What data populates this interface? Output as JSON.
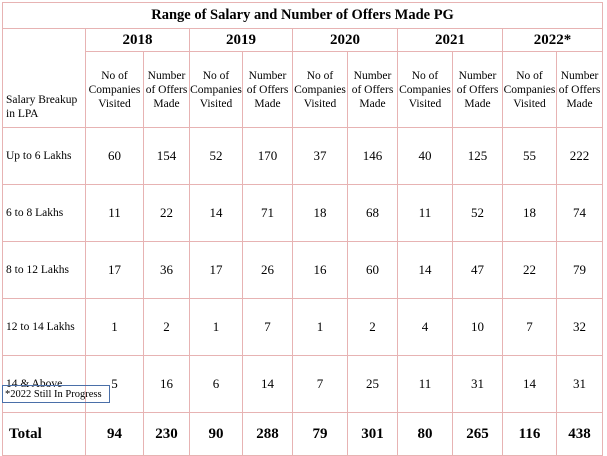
{
  "title": "Range of Salary and  Number of Offers Made PG",
  "row_header": "Salary Breakup in LPA",
  "col_companies": "No of Companies Visited",
  "col_offers": "Number of Offers Made",
  "years": [
    "2018",
    "2019",
    "2020",
    "2021",
    "2022*"
  ],
  "rows": [
    {
      "label": "Up to 6 Lakhs",
      "values": [
        "60",
        "154",
        "52",
        "170",
        "37",
        "146",
        "40",
        "125",
        "55",
        "222"
      ]
    },
    {
      "label": "6 to 8 Lakhs",
      "values": [
        "11",
        "22",
        "14",
        "71",
        "18",
        "68",
        "11",
        "52",
        "18",
        "74"
      ]
    },
    {
      "label": "8 to 12 Lakhs",
      "values": [
        "17",
        "36",
        "17",
        "26",
        "16",
        "60",
        "14",
        "47",
        "22",
        "79"
      ]
    },
    {
      "label": "12 to 14 Lakhs",
      "values": [
        "1",
        "2",
        "1",
        "7",
        "1",
        "2",
        "4",
        "10",
        "7",
        "32"
      ]
    },
    {
      "label": "14 & Above",
      "values": [
        "5",
        "16",
        "6",
        "14",
        "7",
        "25",
        "11",
        "31",
        "14",
        "31"
      ]
    }
  ],
  "total": {
    "label": "Total",
    "values": [
      "94",
      "230",
      "90",
      "288",
      "79",
      "301",
      "80",
      "265",
      "116",
      "438"
    ]
  },
  "footnote": "*2022 Still In Progress"
}
